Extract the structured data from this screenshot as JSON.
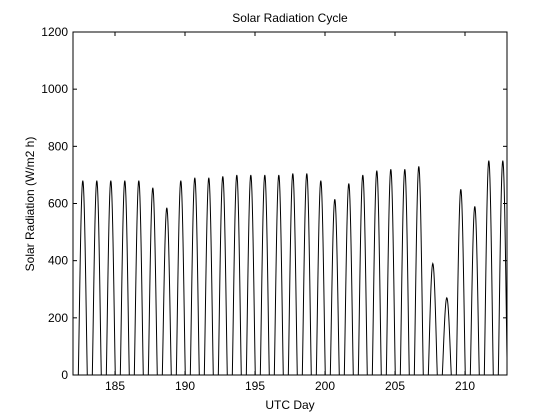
{
  "chart_data": {
    "type": "line",
    "title": "Solar Radiation Cycle",
    "xlabel": "UTC Day",
    "ylabel": "Solar Radiation (W/m2 h)",
    "xlim": [
      182,
      213
    ],
    "ylim": [
      0,
      1200
    ],
    "xticks": [
      185,
      190,
      195,
      200,
      205,
      210
    ],
    "yticks": [
      0,
      200,
      400,
      600,
      800,
      1000,
      1200
    ],
    "grid": false,
    "series": [
      {
        "color": "#000000",
        "daily_cycles": [
          {
            "day": 182.7,
            "peak": 680
          },
          {
            "day": 183.7,
            "peak": 680
          },
          {
            "day": 184.7,
            "peak": 680
          },
          {
            "day": 185.7,
            "peak": 680
          },
          {
            "day": 186.7,
            "peak": 680
          },
          {
            "day": 187.7,
            "peak": 655
          },
          {
            "day": 188.7,
            "peak": 585
          },
          {
            "day": 189.7,
            "peak": 680
          },
          {
            "day": 190.7,
            "peak": 690
          },
          {
            "day": 191.7,
            "peak": 690
          },
          {
            "day": 192.7,
            "peak": 695
          },
          {
            "day": 193.7,
            "peak": 700
          },
          {
            "day": 194.7,
            "peak": 700
          },
          {
            "day": 195.7,
            "peak": 700
          },
          {
            "day": 196.7,
            "peak": 700
          },
          {
            "day": 197.7,
            "peak": 705
          },
          {
            "day": 198.7,
            "peak": 705
          },
          {
            "day": 199.7,
            "peak": 680
          },
          {
            "day": 200.7,
            "peak": 615
          },
          {
            "day": 201.7,
            "peak": 670
          },
          {
            "day": 202.7,
            "peak": 700
          },
          {
            "day": 203.7,
            "peak": 715
          },
          {
            "day": 204.7,
            "peak": 720
          },
          {
            "day": 205.7,
            "peak": 720
          },
          {
            "day": 206.7,
            "peak": 730
          },
          {
            "day": 207.7,
            "peak": 390
          },
          {
            "day": 208.7,
            "peak": 270
          },
          {
            "day": 209.7,
            "peak": 650
          },
          {
            "day": 210.7,
            "peak": 590
          },
          {
            "day": 211.7,
            "peak": 750
          },
          {
            "day": 212.7,
            "peak": 750
          }
        ]
      }
    ]
  }
}
